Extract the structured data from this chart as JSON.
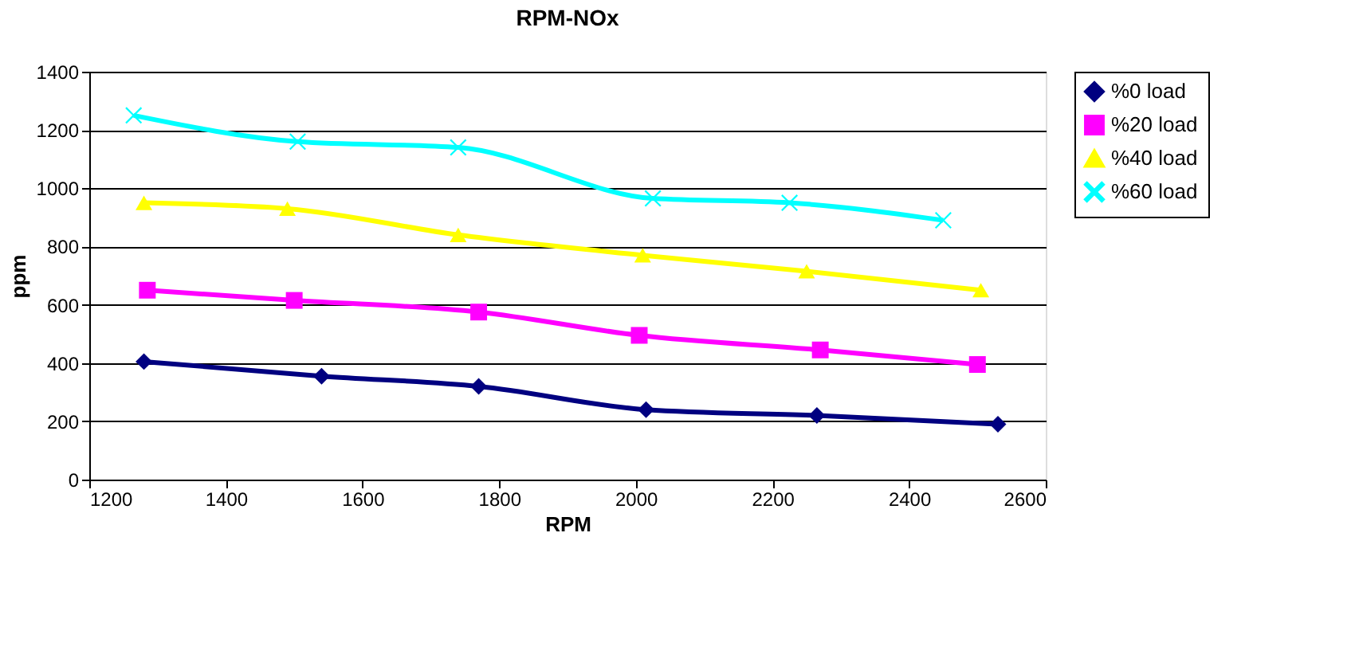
{
  "chart_data": {
    "type": "line",
    "title": "RPM-NOx",
    "xlabel": "RPM",
    "ylabel": "ppm",
    "xlim": [
      1200,
      2600
    ],
    "xticks": [
      1200,
      1400,
      1600,
      1800,
      2000,
      2200,
      2400,
      2600
    ],
    "ylim": [
      0,
      1400
    ],
    "yticks": [
      0,
      200,
      400,
      600,
      800,
      1000,
      1200,
      1400
    ],
    "grid": "y",
    "legend": "right",
    "line_style": "solid",
    "series": [
      {
        "name": "%0 load",
        "color": "#000080",
        "marker": "diamond",
        "x": [
          1280,
          1540,
          1770,
          2015,
          2265,
          2530
        ],
        "values": [
          405,
          355,
          320,
          240,
          220,
          190
        ]
      },
      {
        "name": "%20 load",
        "color": "#ff00ff",
        "marker": "square",
        "x": [
          1285,
          1500,
          1770,
          2005,
          2270,
          2500
        ],
        "values": [
          650,
          615,
          575,
          495,
          445,
          395
        ]
      },
      {
        "name": "%40 load",
        "color": "#ffff00",
        "marker": "triangle",
        "x": [
          1280,
          1490,
          1740,
          2010,
          2250,
          2505
        ],
        "values": [
          950,
          930,
          840,
          770,
          715,
          650
        ]
      },
      {
        "name": "%60 load",
        "color": "#00ffff",
        "marker": "cross",
        "x": [
          1265,
          1505,
          1740,
          2025,
          2225,
          2450
        ],
        "values": [
          1250,
          1160,
          1140,
          965,
          950,
          890
        ]
      }
    ]
  }
}
